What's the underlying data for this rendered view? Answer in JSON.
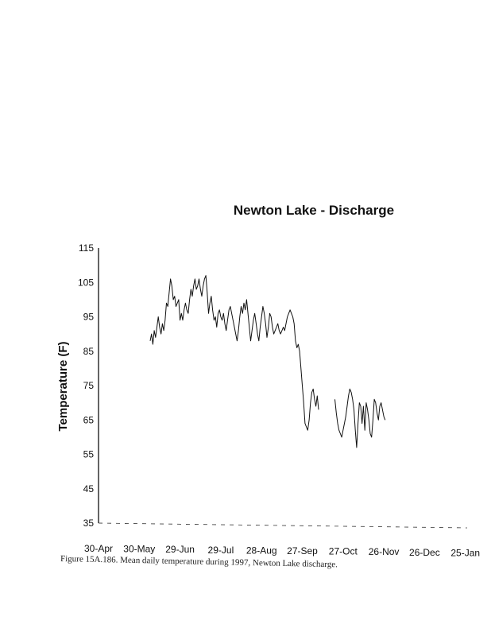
{
  "chart_data": {
    "type": "line",
    "title": "Newton Lake - Discharge",
    "ylabel": "Temperature (F)",
    "xlabel": "",
    "ylim": [
      35,
      115
    ],
    "yticks": [
      35,
      45,
      55,
      65,
      75,
      85,
      95,
      105,
      115
    ],
    "xticks": [
      "30-Apr",
      "30-May",
      "29-Jun",
      "29-Jul",
      "28-Aug",
      "27-Sep",
      "27-Oct",
      "26-Nov",
      "26-Dec",
      "25-Jan"
    ],
    "grid": false,
    "legend": "none",
    "series": [
      {
        "points": [
          [
            "1997-06-07",
            88
          ],
          [
            "1997-06-08",
            90
          ],
          [
            "1997-06-09",
            87
          ],
          [
            "1997-06-10",
            91
          ],
          [
            "1997-06-11",
            89
          ],
          [
            "1997-06-12",
            92
          ],
          [
            "1997-06-13",
            95
          ],
          [
            "1997-06-14",
            92
          ],
          [
            "1997-06-15",
            90
          ],
          [
            "1997-06-16",
            93
          ],
          [
            "1997-06-17",
            91
          ],
          [
            "1997-06-18",
            94
          ],
          [
            "1997-06-19",
            99
          ],
          [
            "1997-06-20",
            98
          ],
          [
            "1997-06-21",
            102
          ],
          [
            "1997-06-22",
            106
          ],
          [
            "1997-06-23",
            104
          ],
          [
            "1997-06-24",
            100
          ],
          [
            "1997-06-25",
            101
          ],
          [
            "1997-06-26",
            98
          ],
          [
            "1997-06-27",
            99
          ],
          [
            "1997-06-28",
            100
          ],
          [
            "1997-06-29",
            94
          ],
          [
            "1997-06-30",
            96
          ],
          [
            "1997-07-01",
            94
          ],
          [
            "1997-07-02",
            97
          ],
          [
            "1997-07-03",
            99
          ],
          [
            "1997-07-04",
            97
          ],
          [
            "1997-07-05",
            96
          ],
          [
            "1997-07-06",
            100
          ],
          [
            "1997-07-07",
            103
          ],
          [
            "1997-07-08",
            101
          ],
          [
            "1997-07-09",
            104
          ],
          [
            "1997-07-10",
            106
          ],
          [
            "1997-07-11",
            103
          ],
          [
            "1997-07-12",
            104
          ],
          [
            "1997-07-13",
            106
          ],
          [
            "1997-07-14",
            103
          ],
          [
            "1997-07-15",
            101
          ],
          [
            "1997-07-16",
            104
          ],
          [
            "1997-07-17",
            106
          ],
          [
            "1997-07-18",
            107
          ],
          [
            "1997-07-19",
            102
          ],
          [
            "1997-07-20",
            96
          ],
          [
            "1997-07-21",
            99
          ],
          [
            "1997-07-22",
            101
          ],
          [
            "1997-07-23",
            97
          ],
          [
            "1997-07-24",
            94
          ],
          [
            "1997-07-25",
            95
          ],
          [
            "1997-07-26",
            92
          ],
          [
            "1997-07-27",
            96
          ],
          [
            "1997-07-28",
            97
          ],
          [
            "1997-07-29",
            95
          ],
          [
            "1997-07-30",
            94
          ],
          [
            "1997-07-31",
            96
          ],
          [
            "1997-08-01",
            93
          ],
          [
            "1997-08-02",
            91
          ],
          [
            "1997-08-03",
            94
          ],
          [
            "1997-08-04",
            97
          ],
          [
            "1997-08-05",
            98
          ],
          [
            "1997-08-06",
            96
          ],
          [
            "1997-08-07",
            94
          ],
          [
            "1997-08-08",
            92
          ],
          [
            "1997-08-09",
            90
          ],
          [
            "1997-08-10",
            88
          ],
          [
            "1997-08-11",
            91
          ],
          [
            "1997-08-12",
            95
          ],
          [
            "1997-08-13",
            98
          ],
          [
            "1997-08-14",
            96
          ],
          [
            "1997-08-15",
            99
          ],
          [
            "1997-08-16",
            97
          ],
          [
            "1997-08-17",
            100
          ],
          [
            "1997-08-18",
            96
          ],
          [
            "1997-08-19",
            92
          ],
          [
            "1997-08-20",
            88
          ],
          [
            "1997-08-21",
            91
          ],
          [
            "1997-08-22",
            94
          ],
          [
            "1997-08-23",
            96
          ],
          [
            "1997-08-24",
            93
          ],
          [
            "1997-08-25",
            90
          ],
          [
            "1997-08-26",
            88
          ],
          [
            "1997-08-27",
            92
          ],
          [
            "1997-08-28",
            95
          ],
          [
            "1997-08-29",
            98
          ],
          [
            "1997-08-30",
            96
          ],
          [
            "1997-08-31",
            93
          ],
          [
            "1997-09-01",
            89
          ],
          [
            "1997-09-02",
            92
          ],
          [
            "1997-09-03",
            96
          ],
          [
            "1997-09-04",
            95
          ],
          [
            "1997-09-05",
            92
          ],
          [
            "1997-09-06",
            90
          ],
          [
            "1997-09-07",
            91
          ],
          [
            "1997-09-08",
            92
          ],
          [
            "1997-09-09",
            93
          ],
          [
            "1997-09-10",
            91
          ],
          [
            "1997-09-11",
            90
          ],
          [
            "1997-09-12",
            91
          ],
          [
            "1997-09-13",
            92
          ],
          [
            "1997-09-14",
            91
          ],
          [
            "1997-09-15",
            93
          ],
          [
            "1997-09-16",
            95
          ],
          [
            "1997-09-17",
            96
          ],
          [
            "1997-09-18",
            97
          ],
          [
            "1997-09-19",
            96
          ],
          [
            "1997-09-20",
            95
          ],
          [
            "1997-09-21",
            93
          ],
          [
            "1997-09-22",
            88
          ],
          [
            "1997-09-23",
            86
          ],
          [
            "1997-09-24",
            87
          ],
          [
            "1997-09-25",
            85
          ],
          [
            "1997-09-26",
            80
          ],
          [
            "1997-09-27",
            75
          ],
          [
            "1997-09-28",
            70
          ],
          [
            "1997-09-29",
            64
          ],
          [
            "1997-09-30",
            63
          ],
          [
            "1997-10-01",
            62
          ],
          [
            "1997-10-02",
            65
          ],
          [
            "1997-10-03",
            70
          ],
          [
            "1997-10-04",
            73
          ],
          [
            "1997-10-05",
            74
          ],
          [
            "1997-10-06",
            71
          ],
          [
            "1997-10-07",
            69
          ],
          [
            "1997-10-08",
            72
          ],
          [
            "1997-10-09",
            68
          ],
          null,
          [
            "1997-10-21",
            71
          ],
          [
            "1997-10-22",
            67
          ],
          [
            "1997-10-23",
            64
          ],
          [
            "1997-10-24",
            62
          ],
          [
            "1997-10-25",
            61
          ],
          [
            "1997-10-26",
            60
          ],
          [
            "1997-10-27",
            62
          ],
          [
            "1997-10-28",
            64
          ],
          [
            "1997-10-29",
            66
          ],
          [
            "1997-10-30",
            69
          ],
          [
            "1997-10-31",
            72
          ],
          [
            "1997-11-01",
            74
          ],
          [
            "1997-11-02",
            73
          ],
          [
            "1997-11-03",
            71
          ],
          [
            "1997-11-04",
            68
          ],
          [
            "1997-11-05",
            62
          ],
          [
            "1997-11-06",
            57
          ],
          [
            "1997-11-07",
            64
          ],
          [
            "1997-11-08",
            70
          ],
          [
            "1997-11-09",
            69
          ],
          [
            "1997-11-10",
            64
          ],
          [
            "1997-11-11",
            69
          ],
          [
            "1997-11-12",
            62
          ],
          [
            "1997-11-13",
            70
          ],
          [
            "1997-11-14",
            68
          ],
          [
            "1997-11-15",
            65
          ],
          [
            "1997-11-16",
            61
          ],
          [
            "1997-11-17",
            60
          ],
          [
            "1997-11-18",
            65
          ],
          [
            "1997-11-19",
            71
          ],
          [
            "1997-11-20",
            70
          ],
          [
            "1997-11-21",
            67
          ],
          [
            "1997-11-22",
            65
          ],
          [
            "1997-11-23",
            69
          ],
          [
            "1997-11-24",
            70
          ],
          [
            "1997-11-25",
            68
          ],
          [
            "1997-11-26",
            66
          ],
          [
            "1997-11-27",
            65
          ]
        ]
      }
    ]
  },
  "caption": "Figure 15A.186. Mean daily temperature during 1997, Newton Lake discharge."
}
